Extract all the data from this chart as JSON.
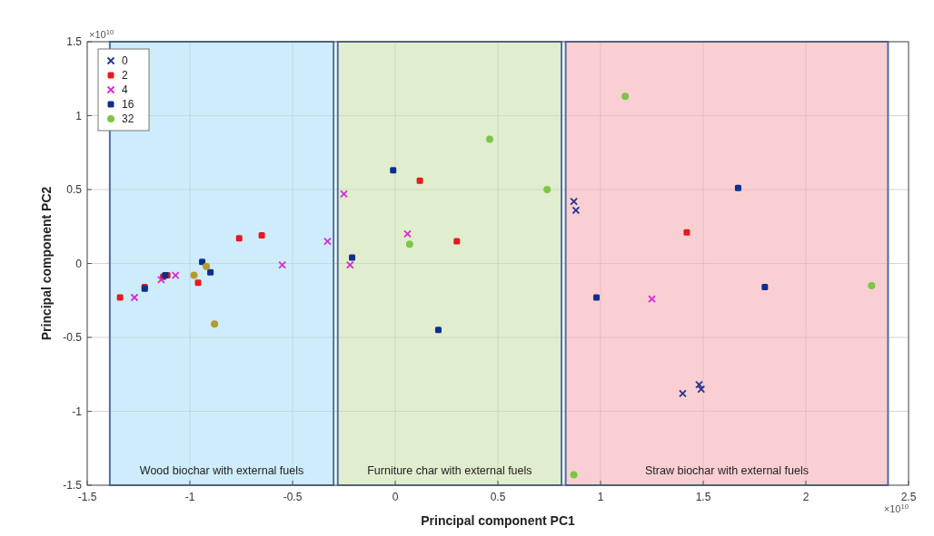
{
  "chart_data": {
    "type": "scatter",
    "xlabel": "Principal component PC1",
    "ylabel": "Principal component PC2",
    "xlim": [
      -1.5,
      2.5
    ],
    "xticks": [
      -1.5,
      -1,
      -0.5,
      0,
      0.5,
      1,
      1.5,
      2,
      2.5
    ],
    "ylim": [
      -1.5,
      1.5
    ],
    "yticks": [
      -1.5,
      -1,
      -0.5,
      0,
      0.5,
      1,
      1.5
    ],
    "grid": true,
    "legend": "top left",
    "annotations": [
      "×10$^{10}$",
      "×10$^{10}$"
    ],
    "bands": [
      {
        "axis": "x",
        "from": -1.39,
        "to": -0.3,
        "label": "Wood biochar with external fuels",
        "color": "#c6e9fa"
      },
      {
        "axis": "x",
        "from": -0.28,
        "to": 0.81,
        "label": "Furniture char with external fuels",
        "color": "#dbeac6"
      },
      {
        "axis": "x",
        "from": 0.83,
        "to": 2.4,
        "label": "Straw biochar with external fuels",
        "color": "#f9c7cb"
      }
    ],
    "series": [
      {
        "name": "0",
        "color": "#22348f",
        "marker": "cross",
        "x": [
          0.87,
          0.88,
          1.4,
          1.48,
          1.49
        ],
        "values": [
          0.42,
          0.36,
          -0.88,
          -0.82,
          -0.85
        ]
      },
      {
        "name": "2",
        "color": "#e51a1f",
        "marker": "square",
        "x": [
          -1.34,
          -1.22,
          -1.13,
          -1.11,
          -0.96,
          -0.76,
          -0.65,
          0.12,
          0.3,
          1.42
        ],
        "values": [
          -0.23,
          -0.16,
          -0.09,
          -0.08,
          -0.13,
          0.17,
          0.19,
          0.56,
          0.15,
          0.21
        ]
      },
      {
        "name": "4",
        "color": "#d62ad6",
        "marker": "cross",
        "x": [
          -1.27,
          -1.14,
          -1.07,
          -0.55,
          -0.33,
          -0.25,
          0.06,
          -0.22,
          1.25
        ],
        "values": [
          -0.23,
          -0.11,
          -0.08,
          -0.01,
          0.15,
          0.47,
          0.2,
          -0.01,
          -0.24
        ]
      },
      {
        "name": "16",
        "color": "#0c2f8c",
        "marker": "square",
        "x": [
          -1.22,
          -1.12,
          -0.94,
          -0.9,
          -0.01,
          -0.21,
          0.21,
          1.67,
          0.98,
          1.8
        ],
        "values": [
          -0.17,
          -0.08,
          0.01,
          -0.06,
          0.63,
          0.04,
          -0.45,
          0.51,
          -0.23,
          -0.16
        ]
      },
      {
        "name": "32",
        "color": "#7cc646",
        "marker": "circle",
        "x": [
          -0.98,
          -0.92,
          -0.88,
          0.46,
          0.74,
          0.07,
          1.12,
          2.32,
          0.87
        ],
        "values": [
          -0.08,
          -0.02,
          -0.41,
          0.84,
          0.5,
          0.13,
          1.13,
          -0.15,
          -1.43
        ],
        "colors": [
          "#b39b2e",
          "#b39b2e",
          "#b39b2e",
          "#7cc646",
          "#7cc646",
          "#7cc646",
          "#7cc646",
          "#7cc646",
          "#7cc646"
        ]
      }
    ]
  }
}
